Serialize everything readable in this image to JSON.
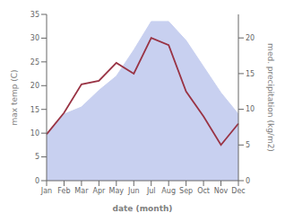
{
  "chart_data": {
    "type": "combo",
    "categories": [
      "Jan",
      "Feb",
      "Mar",
      "Apr",
      "May",
      "Jun",
      "Jul",
      "Aug",
      "Sep",
      "Oct",
      "Nov",
      "Dec"
    ],
    "series": [
      {
        "type": "area",
        "color": "#c8d0f0",
        "values": [
          9.5,
          14.0,
          15.5,
          19.0,
          22.0,
          27.5,
          33.5,
          33.5,
          29.5,
          24.0,
          18.5,
          14.0
        ]
      },
      {
        "type": "line",
        "color": "#993344",
        "axis": "y2",
        "values": [
          6.5,
          9.5,
          13.5,
          14.0,
          16.5,
          15.0,
          20.0,
          19.0,
          12.5,
          9.0,
          5.0,
          8.0
        ]
      }
    ],
    "xlabel": "date (month)",
    "ylabel": "max temp (C)",
    "y2label": "med. precipitation (kg/m2)",
    "ylim": [
      0,
      35
    ],
    "yticks": [
      0,
      5,
      10,
      15,
      20,
      25,
      30,
      35
    ],
    "y2lim": [
      0,
      23.3
    ],
    "y2ticks": [
      0,
      5,
      10,
      15,
      20
    ],
    "grid": false
  }
}
